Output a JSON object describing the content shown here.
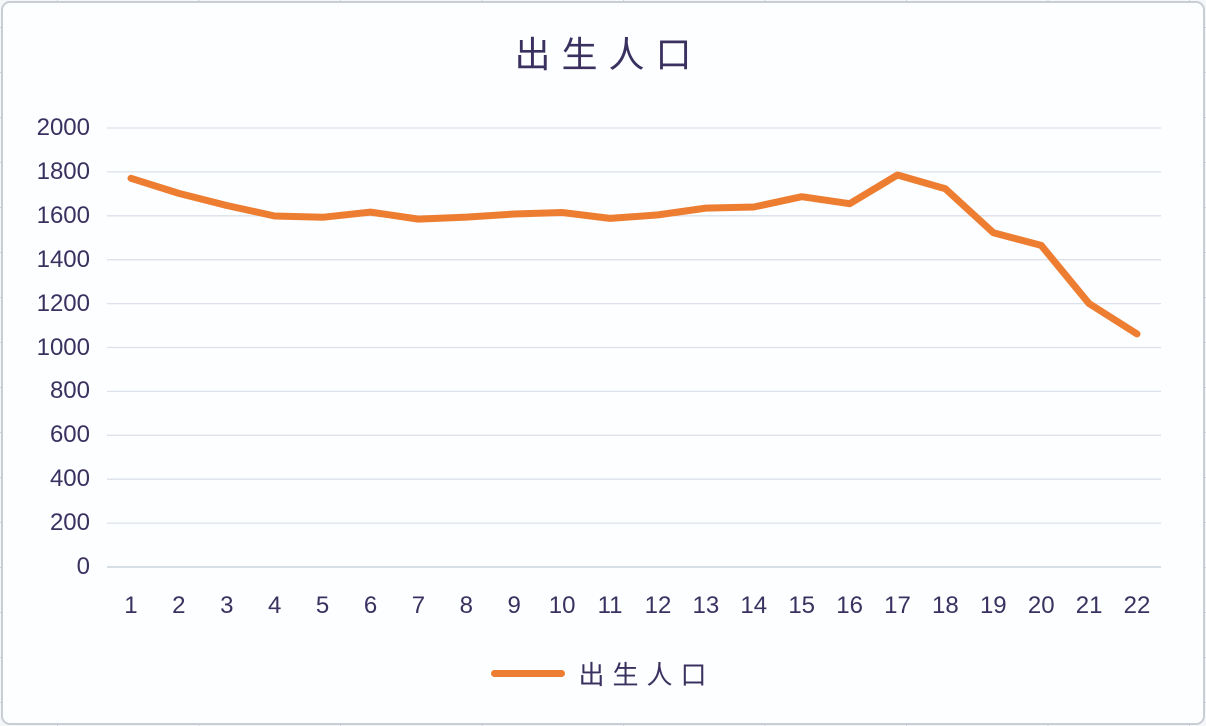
{
  "chart_data": {
    "type": "line",
    "title": "出生人口",
    "xlabel": "",
    "ylabel": "",
    "categories": [
      "1",
      "2",
      "3",
      "4",
      "5",
      "6",
      "7",
      "8",
      "9",
      "10",
      "11",
      "12",
      "13",
      "14",
      "15",
      "16",
      "17",
      "18",
      "19",
      "20",
      "21",
      "22"
    ],
    "series": [
      {
        "name": "出生人口",
        "color": "#ED7D31",
        "values": [
          1771,
          1702,
          1647,
          1599,
          1593,
          1617,
          1585,
          1594,
          1608,
          1615,
          1588,
          1604,
          1635,
          1640,
          1687,
          1655,
          1786,
          1723,
          1523,
          1465,
          1200,
          1062
        ]
      }
    ],
    "ylim": [
      0,
      2000
    ],
    "yticks": [
      0,
      200,
      400,
      600,
      800,
      1000,
      1200,
      1400,
      1600,
      1800,
      2000
    ],
    "grid": true,
    "legend_position": "bottom",
    "colors": {
      "line": "#ED7D31",
      "text": "#3A3160",
      "gridline": "#DCE1EA",
      "axis": "#C2CAD6",
      "frame_border": "#C9CED6"
    }
  }
}
